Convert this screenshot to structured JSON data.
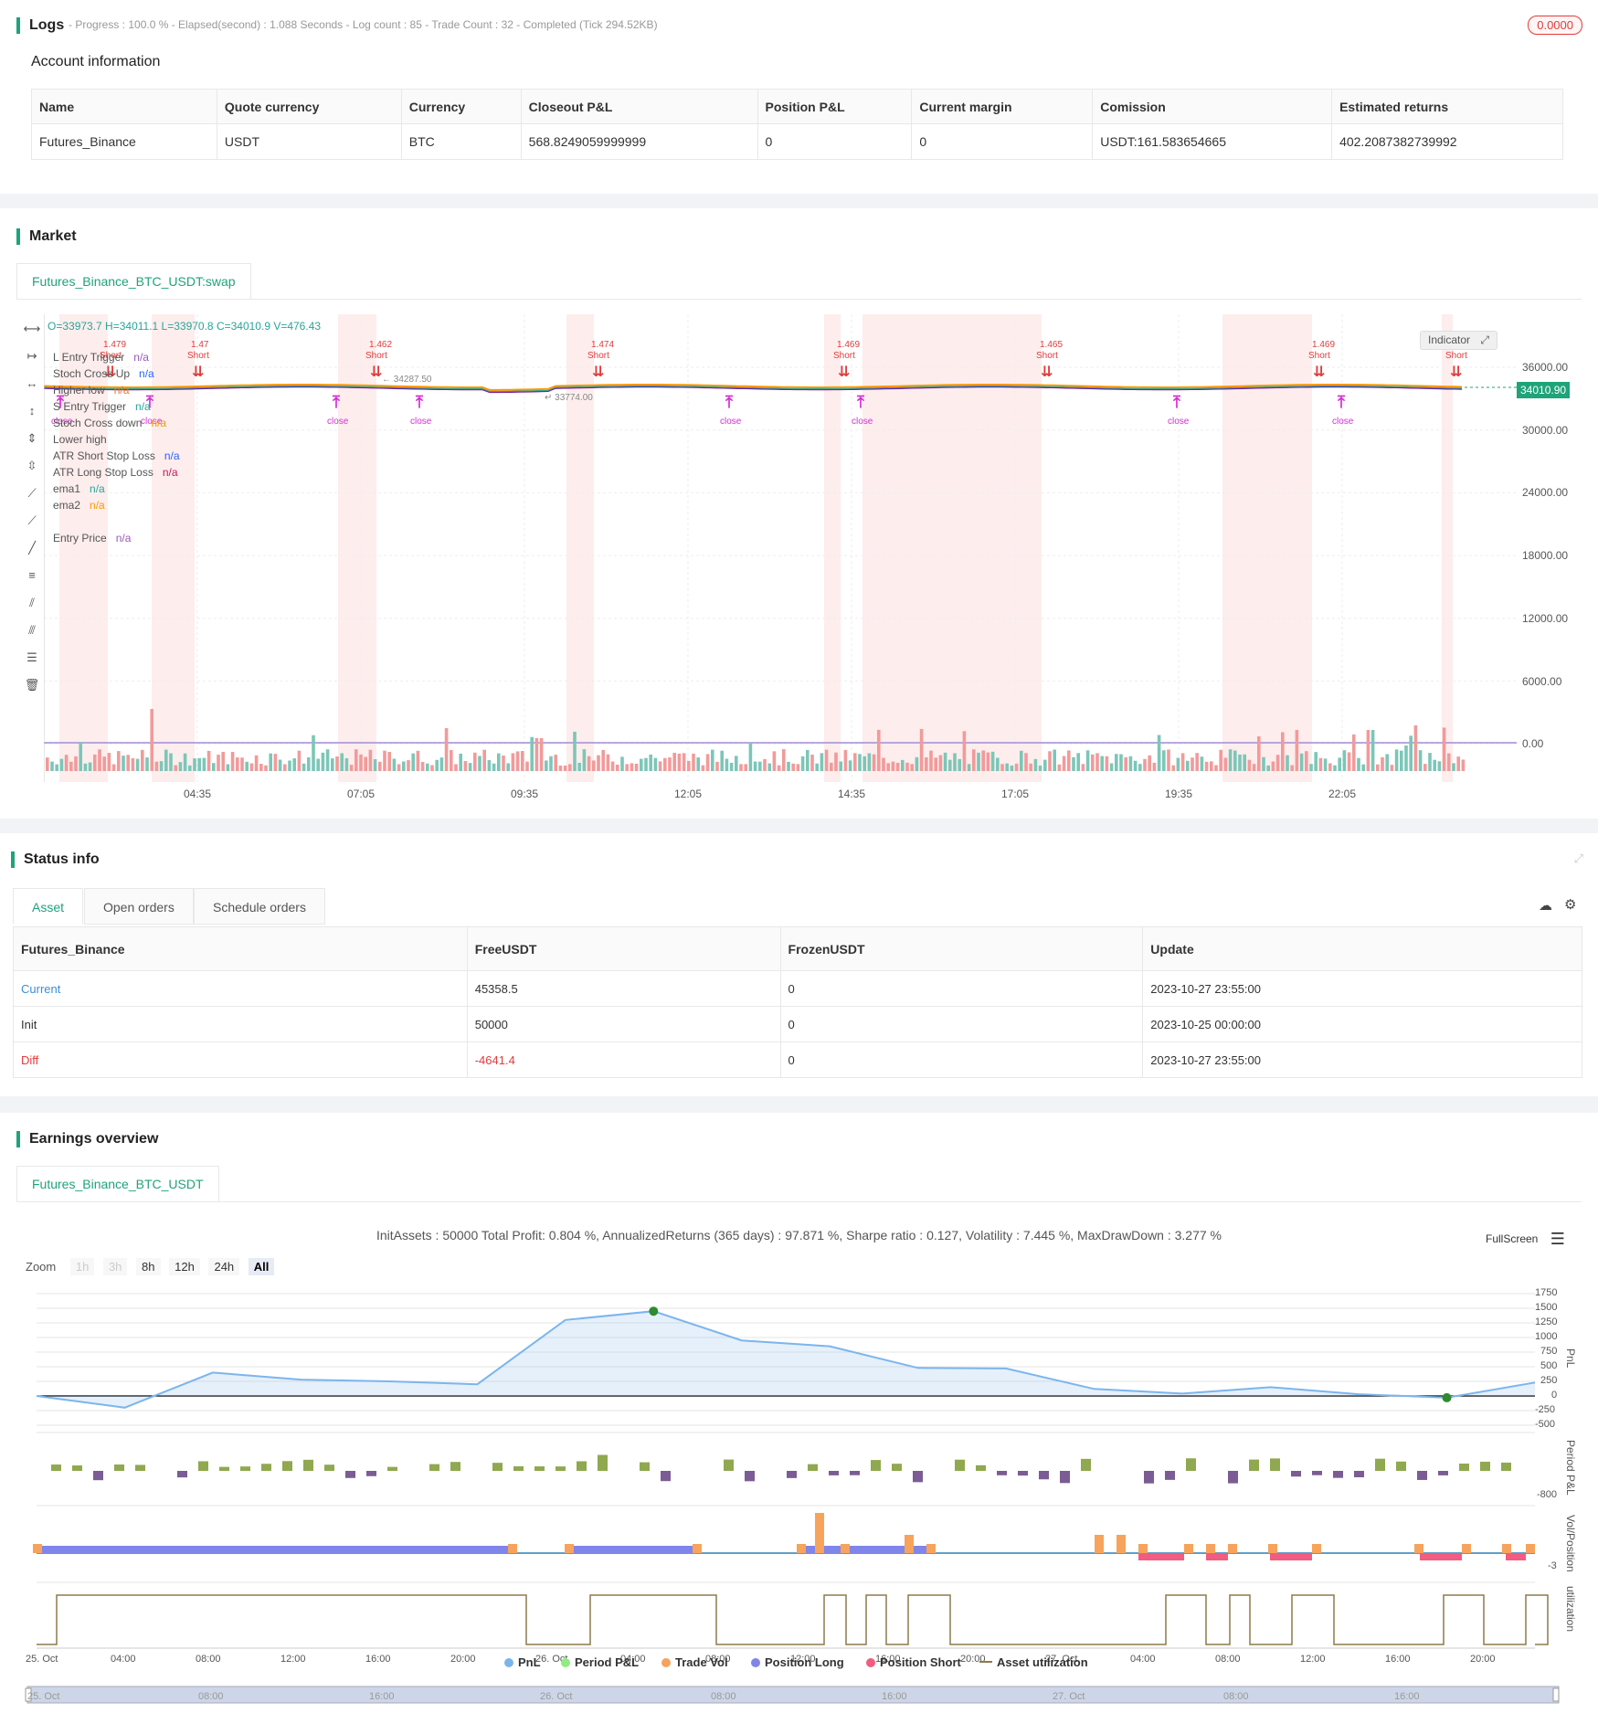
{
  "logs": {
    "title": "Logs",
    "meta": "- Progress : 100.0 % - Elapsed(second) : 1.088  Seconds - Log count : 85 - Trade Count : 32 - Completed (Tick 294.52KB)",
    "badge": "0.0000",
    "account_label": "Account information",
    "headers": [
      "Name",
      "Quote currency",
      "Currency",
      "Closeout P&L",
      "Position P&L",
      "Current margin",
      "Comission",
      "Estimated returns"
    ],
    "row": [
      "Futures_Binance",
      "USDT",
      "BTC",
      "568.8249059999999",
      "0",
      "0",
      "USDT:161.583654665",
      "402.2087382739992"
    ]
  },
  "market": {
    "title": "Market",
    "tab": "Futures_Binance_BTC_USDT:swap",
    "ohlc": "O=33973.7 H=34011.1 L=33970.8 C=34010.9 V=476.43",
    "indicator_btn": "Indicator",
    "last_price": "34010.90",
    "legend": [
      {
        "label": "L Entry Trigger",
        "value": "n/a",
        "color": "#9b59b6"
      },
      {
        "label": "Stoch Cross Up",
        "value": "n/a",
        "color": "#2962ff"
      },
      {
        "label": "Higher low",
        "value": "n/a",
        "color": "#e67e22"
      },
      {
        "label": "S Entry Trigger",
        "value": "n/a",
        "color": "#26a69a"
      },
      {
        "label": "Stoch Cross down",
        "value": "n/a",
        "color": "#ff9800"
      },
      {
        "label": "Lower high",
        "value": "",
        "color": "#555"
      },
      {
        "label": "ATR Short Stop Loss",
        "value": "n/a",
        "color": "#2962ff"
      },
      {
        "label": "ATR Long Stop Loss",
        "value": "n/a",
        "color": "#c2185b"
      },
      {
        "label": "ema1",
        "value": "n/a",
        "color": "#26a69a"
      },
      {
        "label": "ema2",
        "value": "n/a",
        "color": "#ff9800"
      },
      {
        "label": "Entry Price",
        "value": "n/a",
        "color": "#9b59b6"
      }
    ],
    "y_ticks": [
      "36000.00",
      "30000.00",
      "24000.00",
      "18000.00",
      "12000.00",
      "6000.00",
      "0.00"
    ],
    "x_ticks": [
      "04:35",
      "07:05",
      "09:35",
      "12:05",
      "14:35",
      "17:05",
      "19:35",
      "22:05"
    ],
    "annotations": {
      "short_values": [
        "1.479",
        "1.47",
        "1.462",
        "1.474",
        "1.469",
        "1.465",
        "1.469"
      ],
      "short_label": "Short",
      "close_label": "close",
      "high_label": "34287.50",
      "low_label": "33774.00"
    }
  },
  "status": {
    "title": "Status info",
    "tabs": [
      "Asset",
      "Open orders",
      "Schedule orders"
    ],
    "headers": [
      "Futures_Binance",
      "FreeUSDT",
      "FrozenUSDT",
      "Update"
    ],
    "rows": [
      [
        "Current",
        "45358.5",
        "0",
        "2023-10-27 23:55:00"
      ],
      [
        "Init",
        "50000",
        "0",
        "2023-10-25 00:00:00"
      ],
      [
        "Diff",
        "-4641.4",
        "0",
        "2023-10-27 23:55:00"
      ]
    ]
  },
  "earnings": {
    "title": "Earnings overview",
    "tab": "Futures_Binance_BTC_USDT",
    "summary": "InitAssets : 50000 Total Profit: 0.804 %, AnnualizedReturns (365 days) : 97.871 %, Sharpe ratio : 0.127, Volatility : 7.445 %, MaxDrawDown : 3.277 %",
    "fullscreen": "FullScreen",
    "zoom_label": "Zoom",
    "zoom_buttons": [
      "1h",
      "3h",
      "8h",
      "12h",
      "24h",
      "All"
    ],
    "pnl_ticks": [
      "1750",
      "1500",
      "1250",
      "1000",
      "750",
      "500",
      "250",
      "0",
      "-250",
      "-500"
    ],
    "period_tick": "-800",
    "vol_tick": "-3",
    "axis_titles": [
      "PnL",
      "Period P&L",
      "Vol/Position",
      "utilization"
    ],
    "x_ticks": [
      "25. Oct",
      "04:00",
      "08:00",
      "12:00",
      "16:00",
      "20:00",
      "26. Oct",
      "04:00",
      "08:00",
      "12:00",
      "16:00",
      "20:00",
      "27. Oct",
      "04:00",
      "08:00",
      "12:00",
      "16:00",
      "20:00"
    ],
    "legend": [
      {
        "label": "PnL",
        "color": "#7cb5ec"
      },
      {
        "label": "Period P&L",
        "color": "#90ed7d"
      },
      {
        "label": "Trade Vol",
        "color": "#f7a35c"
      },
      {
        "label": "Position Long",
        "color": "#8085e9"
      },
      {
        "label": "Position Short",
        "color": "#f15c80"
      },
      {
        "label": "Asset utilization",
        "color": "#8d7a4a"
      }
    ],
    "navigator_ticks": [
      "25. Oct",
      "08:00",
      "16:00",
      "26. Oct",
      "08:00",
      "16:00",
      "27. Oct",
      "08:00",
      "16:00"
    ]
  },
  "chart_data": {
    "type": "line",
    "x": [
      "25. Oct 00:00",
      "04:00",
      "08:00",
      "12:00",
      "16:00",
      "20:00",
      "26. Oct 00:00",
      "04:00",
      "08:00",
      "12:00",
      "16:00",
      "20:00",
      "27. Oct 00:00",
      "04:00",
      "08:00",
      "12:00",
      "16:00",
      "20:00"
    ],
    "series": [
      {
        "name": "PnL",
        "values": [
          0,
          -200,
          400,
          280,
          250,
          200,
          1300,
          1450,
          950,
          850,
          480,
          470,
          120,
          40,
          150,
          30,
          -30,
          230
        ]
      }
    ],
    "ylim": [
      -500,
      1750
    ]
  }
}
